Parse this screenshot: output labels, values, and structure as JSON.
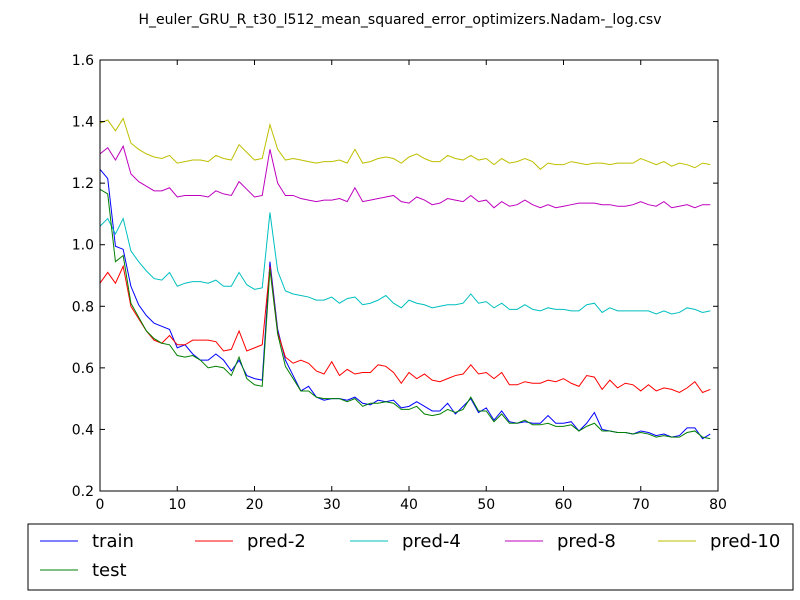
{
  "chart_data": {
    "type": "line",
    "title": "H_euler_GRU_R_t30_l512_mean_squared_error_optimizers.Nadam-_log.csv",
    "xlabel": "",
    "ylabel": "",
    "xlim": [
      0,
      80
    ],
    "ylim": [
      0.2,
      1.6
    ],
    "xticks": [
      0,
      10,
      20,
      30,
      40,
      50,
      60,
      70,
      80
    ],
    "yticks": [
      0.2,
      0.4,
      0.6,
      0.8,
      1.0,
      1.2,
      1.4,
      1.6
    ],
    "xtick_labels": [
      "0",
      "10",
      "20",
      "30",
      "40",
      "50",
      "60",
      "70",
      "80"
    ],
    "ytick_labels": [
      "0.2",
      "0.4",
      "0.6",
      "0.8",
      "1.0",
      "1.2",
      "1.4",
      "1.6"
    ],
    "grid": false,
    "legend_position": "below-plot",
    "x": [
      0,
      1,
      2,
      3,
      4,
      5,
      6,
      7,
      8,
      9,
      10,
      11,
      12,
      13,
      14,
      15,
      16,
      17,
      18,
      19,
      20,
      21,
      22,
      23,
      24,
      25,
      26,
      27,
      28,
      29,
      30,
      31,
      32,
      33,
      34,
      35,
      36,
      37,
      38,
      39,
      40,
      41,
      42,
      43,
      44,
      45,
      46,
      47,
      48,
      49,
      50,
      51,
      52,
      53,
      54,
      55,
      56,
      57,
      58,
      59,
      60,
      61,
      62,
      63,
      64,
      65,
      66,
      67,
      68,
      69,
      70,
      71,
      72,
      73,
      74,
      75,
      76,
      77,
      78,
      79
    ],
    "series": [
      {
        "name": "train",
        "color": "#0000ff",
        "values": [
          1.245,
          1.215,
          0.995,
          0.985,
          0.865,
          0.805,
          0.77,
          0.745,
          0.735,
          0.725,
          0.665,
          0.675,
          0.645,
          0.625,
          0.625,
          0.645,
          0.625,
          0.59,
          0.625,
          0.575,
          0.565,
          0.56,
          0.945,
          0.725,
          0.625,
          0.575,
          0.525,
          0.54,
          0.505,
          0.495,
          0.5,
          0.5,
          0.495,
          0.505,
          0.485,
          0.48,
          0.495,
          0.49,
          0.495,
          0.47,
          0.475,
          0.49,
          0.475,
          0.46,
          0.46,
          0.485,
          0.45,
          0.475,
          0.5,
          0.455,
          0.47,
          0.43,
          0.46,
          0.425,
          0.42,
          0.425,
          0.42,
          0.42,
          0.445,
          0.42,
          0.42,
          0.425,
          0.395,
          0.42,
          0.455,
          0.4,
          0.395,
          0.39,
          0.39,
          0.385,
          0.395,
          0.39,
          0.38,
          0.385,
          0.375,
          0.38,
          0.405,
          0.405,
          0.37,
          0.385
        ]
      },
      {
        "name": "pred-2",
        "color": "#ff0000",
        "values": [
          0.875,
          0.91,
          0.875,
          0.93,
          0.8,
          0.76,
          0.72,
          0.69,
          0.68,
          0.705,
          0.675,
          0.675,
          0.69,
          0.69,
          0.69,
          0.685,
          0.655,
          0.66,
          0.72,
          0.655,
          0.665,
          0.675,
          0.93,
          0.715,
          0.635,
          0.615,
          0.625,
          0.615,
          0.59,
          0.58,
          0.62,
          0.575,
          0.595,
          0.58,
          0.585,
          0.585,
          0.61,
          0.605,
          0.585,
          0.55,
          0.585,
          0.565,
          0.58,
          0.56,
          0.555,
          0.565,
          0.575,
          0.58,
          0.61,
          0.58,
          0.585,
          0.565,
          0.585,
          0.545,
          0.545,
          0.555,
          0.55,
          0.55,
          0.56,
          0.555,
          0.565,
          0.55,
          0.54,
          0.575,
          0.57,
          0.53,
          0.56,
          0.535,
          0.55,
          0.545,
          0.525,
          0.545,
          0.525,
          0.535,
          0.53,
          0.52,
          0.535,
          0.555,
          0.52,
          0.53
        ]
      },
      {
        "name": "pred-4",
        "color": "#00bfbf",
        "values": [
          1.06,
          1.085,
          1.035,
          1.085,
          0.98,
          0.945,
          0.915,
          0.89,
          0.885,
          0.91,
          0.865,
          0.875,
          0.88,
          0.88,
          0.875,
          0.885,
          0.865,
          0.865,
          0.91,
          0.87,
          0.855,
          0.86,
          1.105,
          0.915,
          0.85,
          0.84,
          0.835,
          0.83,
          0.82,
          0.82,
          0.83,
          0.81,
          0.825,
          0.83,
          0.805,
          0.81,
          0.82,
          0.835,
          0.81,
          0.795,
          0.82,
          0.81,
          0.805,
          0.795,
          0.8,
          0.805,
          0.805,
          0.81,
          0.84,
          0.81,
          0.815,
          0.795,
          0.81,
          0.79,
          0.79,
          0.805,
          0.79,
          0.785,
          0.795,
          0.79,
          0.79,
          0.785,
          0.785,
          0.805,
          0.81,
          0.78,
          0.795,
          0.785,
          0.785,
          0.785,
          0.785,
          0.785,
          0.775,
          0.785,
          0.775,
          0.78,
          0.795,
          0.79,
          0.78,
          0.785
        ]
      },
      {
        "name": "pred-8",
        "color": "#bf00bf",
        "values": [
          1.295,
          1.315,
          1.275,
          1.32,
          1.23,
          1.205,
          1.19,
          1.175,
          1.175,
          1.185,
          1.155,
          1.16,
          1.16,
          1.16,
          1.155,
          1.175,
          1.165,
          1.16,
          1.205,
          1.18,
          1.155,
          1.16,
          1.31,
          1.2,
          1.16,
          1.16,
          1.15,
          1.145,
          1.14,
          1.145,
          1.145,
          1.15,
          1.14,
          1.185,
          1.14,
          1.145,
          1.15,
          1.155,
          1.16,
          1.14,
          1.135,
          1.155,
          1.145,
          1.13,
          1.135,
          1.15,
          1.145,
          1.14,
          1.16,
          1.14,
          1.145,
          1.12,
          1.14,
          1.125,
          1.13,
          1.145,
          1.13,
          1.12,
          1.13,
          1.12,
          1.125,
          1.13,
          1.135,
          1.135,
          1.135,
          1.13,
          1.13,
          1.125,
          1.125,
          1.13,
          1.14,
          1.13,
          1.125,
          1.14,
          1.12,
          1.125,
          1.13,
          1.12,
          1.13,
          1.13
        ]
      },
      {
        "name": "pred-10",
        "color": "#bfbf00",
        "values": [
          1.395,
          1.405,
          1.37,
          1.41,
          1.33,
          1.31,
          1.295,
          1.285,
          1.28,
          1.29,
          1.265,
          1.27,
          1.275,
          1.275,
          1.27,
          1.29,
          1.28,
          1.275,
          1.325,
          1.3,
          1.275,
          1.28,
          1.39,
          1.31,
          1.275,
          1.28,
          1.275,
          1.27,
          1.265,
          1.27,
          1.27,
          1.275,
          1.265,
          1.31,
          1.265,
          1.27,
          1.28,
          1.285,
          1.28,
          1.265,
          1.285,
          1.295,
          1.28,
          1.27,
          1.27,
          1.29,
          1.28,
          1.275,
          1.29,
          1.275,
          1.28,
          1.26,
          1.28,
          1.265,
          1.27,
          1.28,
          1.27,
          1.245,
          1.265,
          1.26,
          1.26,
          1.27,
          1.265,
          1.26,
          1.265,
          1.265,
          1.26,
          1.265,
          1.265,
          1.265,
          1.28,
          1.27,
          1.26,
          1.27,
          1.255,
          1.265,
          1.26,
          1.25,
          1.265,
          1.26
        ]
      },
      {
        "name": "test",
        "color": "#008000",
        "values": [
          1.18,
          1.165,
          0.945,
          0.965,
          0.81,
          0.765,
          0.72,
          0.695,
          0.68,
          0.675,
          0.64,
          0.635,
          0.64,
          0.625,
          0.6,
          0.605,
          0.6,
          0.575,
          0.635,
          0.565,
          0.545,
          0.54,
          0.92,
          0.71,
          0.605,
          0.565,
          0.525,
          0.525,
          0.505,
          0.5,
          0.5,
          0.5,
          0.49,
          0.5,
          0.475,
          0.485,
          0.485,
          0.49,
          0.485,
          0.465,
          0.465,
          0.475,
          0.45,
          0.445,
          0.45,
          0.465,
          0.455,
          0.465,
          0.505,
          0.46,
          0.46,
          0.425,
          0.45,
          0.42,
          0.42,
          0.43,
          0.415,
          0.415,
          0.42,
          0.41,
          0.41,
          0.415,
          0.395,
          0.41,
          0.42,
          0.395,
          0.395,
          0.39,
          0.39,
          0.385,
          0.39,
          0.385,
          0.375,
          0.38,
          0.375,
          0.375,
          0.39,
          0.395,
          0.375,
          0.37
        ]
      }
    ]
  },
  "legend": {
    "items": [
      {
        "label": "train",
        "color": "#0000ff"
      },
      {
        "label": "pred-2",
        "color": "#ff0000"
      },
      {
        "label": "pred-4",
        "color": "#00bfbf"
      },
      {
        "label": "pred-8",
        "color": "#bf00bf"
      },
      {
        "label": "pred-10",
        "color": "#bfbf00"
      },
      {
        "label": "test",
        "color": "#008000"
      }
    ]
  }
}
